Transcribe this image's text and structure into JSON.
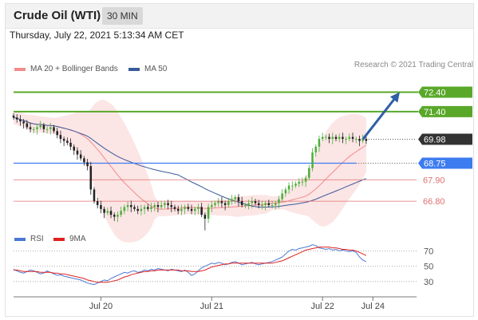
{
  "header": {
    "title": "Crude Oil (WTI)",
    "timeframe": "30 MIN"
  },
  "date": "Thursday, July 22, 2021 5:13:34 AM CET",
  "copyright": "Research © 2021 Trading Central",
  "legend": {
    "main": [
      {
        "label": "MA 20 + Bollinger Bands",
        "color": "#f28b8b"
      },
      {
        "label": "MA 50",
        "color": "#3a5a9a"
      }
    ],
    "rsi": [
      {
        "label": "RSI",
        "color": "#4a78d4"
      },
      {
        "label": "9MA",
        "color": "#e02020"
      }
    ]
  },
  "colors": {
    "up": "#4caf3a",
    "down": "#222222",
    "band": "#fbdcdc",
    "ma20": "#f28b8b",
    "ma50": "#3a5a9a",
    "target": "#5aa82a",
    "pivot": "#3d7cf0",
    "support": "#e07070",
    "arrow": "#2f5fa5",
    "last": "#333333"
  },
  "chart_data": [
    {
      "type": "candlestick",
      "ylim": [
        65.0,
        73.2
      ],
      "xlim": [
        0,
        120
      ],
      "x_ticks": [
        {
          "x": 26,
          "label": "Jul 20"
        },
        {
          "x": 59,
          "label": "Jul 21"
        },
        {
          "x": 92,
          "label": "Jul 22"
        },
        {
          "x": 107,
          "label": "Jul 24"
        }
      ],
      "close": [
        71.1,
        71.0,
        70.9,
        70.8,
        70.6,
        70.5,
        70.5,
        70.6,
        70.7,
        70.5,
        70.5,
        70.6,
        70.4,
        70.2,
        70.0,
        69.9,
        69.8,
        69.6,
        69.4,
        69.2,
        69.0,
        68.8,
        68.6,
        67.4,
        66.8,
        66.6,
        66.4,
        66.2,
        66.3,
        66.1,
        66.0,
        66.1,
        66.3,
        66.5,
        66.6,
        66.5,
        66.4,
        66.3,
        66.4,
        66.5,
        66.4,
        66.5,
        66.6,
        66.5,
        66.6,
        66.7,
        66.6,
        66.5,
        66.4,
        66.3,
        66.4,
        66.5,
        66.4,
        66.3,
        66.4,
        66.5,
        66.1,
        65.9,
        66.5,
        66.6,
        66.7,
        66.8,
        66.7,
        66.6,
        66.8,
        66.9,
        67.0,
        66.8,
        66.6,
        66.6,
        66.7,
        66.8,
        66.7,
        66.6,
        66.6,
        66.7,
        66.6,
        66.6,
        66.7,
        66.9,
        67.2,
        67.4,
        67.6,
        67.6,
        67.7,
        67.8,
        67.8,
        68.0,
        68.5,
        69.3,
        69.6,
        70.0,
        70.1,
        70.1,
        70.0,
        70.1,
        70.0,
        70.1,
        70.0,
        70.0,
        70.1,
        70.0,
        70.0,
        69.9,
        70.0,
        69.9
      ],
      "levels": [
        {
          "value": 72.4,
          "label": "72.40",
          "role": "target"
        },
        {
          "value": 71.4,
          "label": "71.40",
          "role": "target"
        },
        {
          "value": 69.98,
          "label": "69.98",
          "role": "last"
        },
        {
          "value": 68.75,
          "label": "68.75",
          "role": "pivot"
        },
        {
          "value": 67.9,
          "label": "67.90",
          "role": "support"
        },
        {
          "value": 66.8,
          "label": "66.80",
          "role": "support"
        }
      ],
      "arrow": {
        "from": [
          104,
          69.98
        ],
        "to": [
          115,
          72.4
        ]
      },
      "series": [
        {
          "name": "MA 20 + Bollinger Bands"
        },
        {
          "name": "MA 50"
        }
      ]
    },
    {
      "type": "line",
      "ylim": [
        10,
        85
      ],
      "y_ticks": [
        70,
        50,
        30
      ],
      "series": [
        {
          "name": "RSI",
          "values": [
            46,
            44,
            42,
            41,
            43,
            45,
            44,
            42,
            40,
            41,
            44,
            42,
            40,
            38,
            39,
            37,
            36,
            35,
            34,
            33,
            32,
            30,
            28,
            27,
            26,
            28,
            30,
            32,
            31,
            34,
            36,
            38,
            40,
            42,
            41,
            43,
            44,
            42,
            43,
            45,
            44,
            46,
            45,
            47,
            46,
            45,
            44,
            46,
            45,
            44,
            43,
            45,
            42,
            38,
            40,
            44,
            48,
            50,
            52,
            54,
            53,
            55,
            54,
            52,
            53,
            55,
            56,
            54,
            52,
            53,
            54,
            55,
            53,
            52,
            53,
            54,
            55,
            56,
            58,
            60,
            62,
            66,
            70,
            72,
            71,
            73,
            74,
            75,
            76,
            78,
            77,
            74,
            73,
            72,
            73,
            71,
            72,
            70,
            71,
            70,
            69,
            70,
            68,
            62,
            58,
            56
          ]
        },
        {
          "name": "9MA",
          "values": [
            45,
            45,
            44,
            43,
            43,
            43,
            43,
            43,
            42,
            42,
            42,
            42,
            41,
            41,
            40,
            40,
            39,
            38,
            37,
            36,
            35,
            34,
            32,
            31,
            30,
            29,
            29,
            29,
            29,
            30,
            31,
            32,
            34,
            36,
            37,
            39,
            40,
            41,
            42,
            43,
            43,
            44,
            44,
            45,
            45,
            45,
            45,
            45,
            45,
            45,
            44,
            44,
            44,
            43,
            43,
            43,
            44,
            45,
            47,
            49,
            50,
            51,
            52,
            53,
            53,
            54,
            54,
            54,
            54,
            54,
            54,
            54,
            54,
            54,
            54,
            54,
            54,
            54,
            55,
            56,
            57,
            59,
            61,
            63,
            65,
            67,
            69,
            71,
            72,
            73,
            74,
            75,
            75,
            75,
            75,
            74,
            74,
            73,
            72,
            72,
            71,
            71,
            70,
            68,
            66,
            64
          ]
        }
      ]
    }
  ]
}
